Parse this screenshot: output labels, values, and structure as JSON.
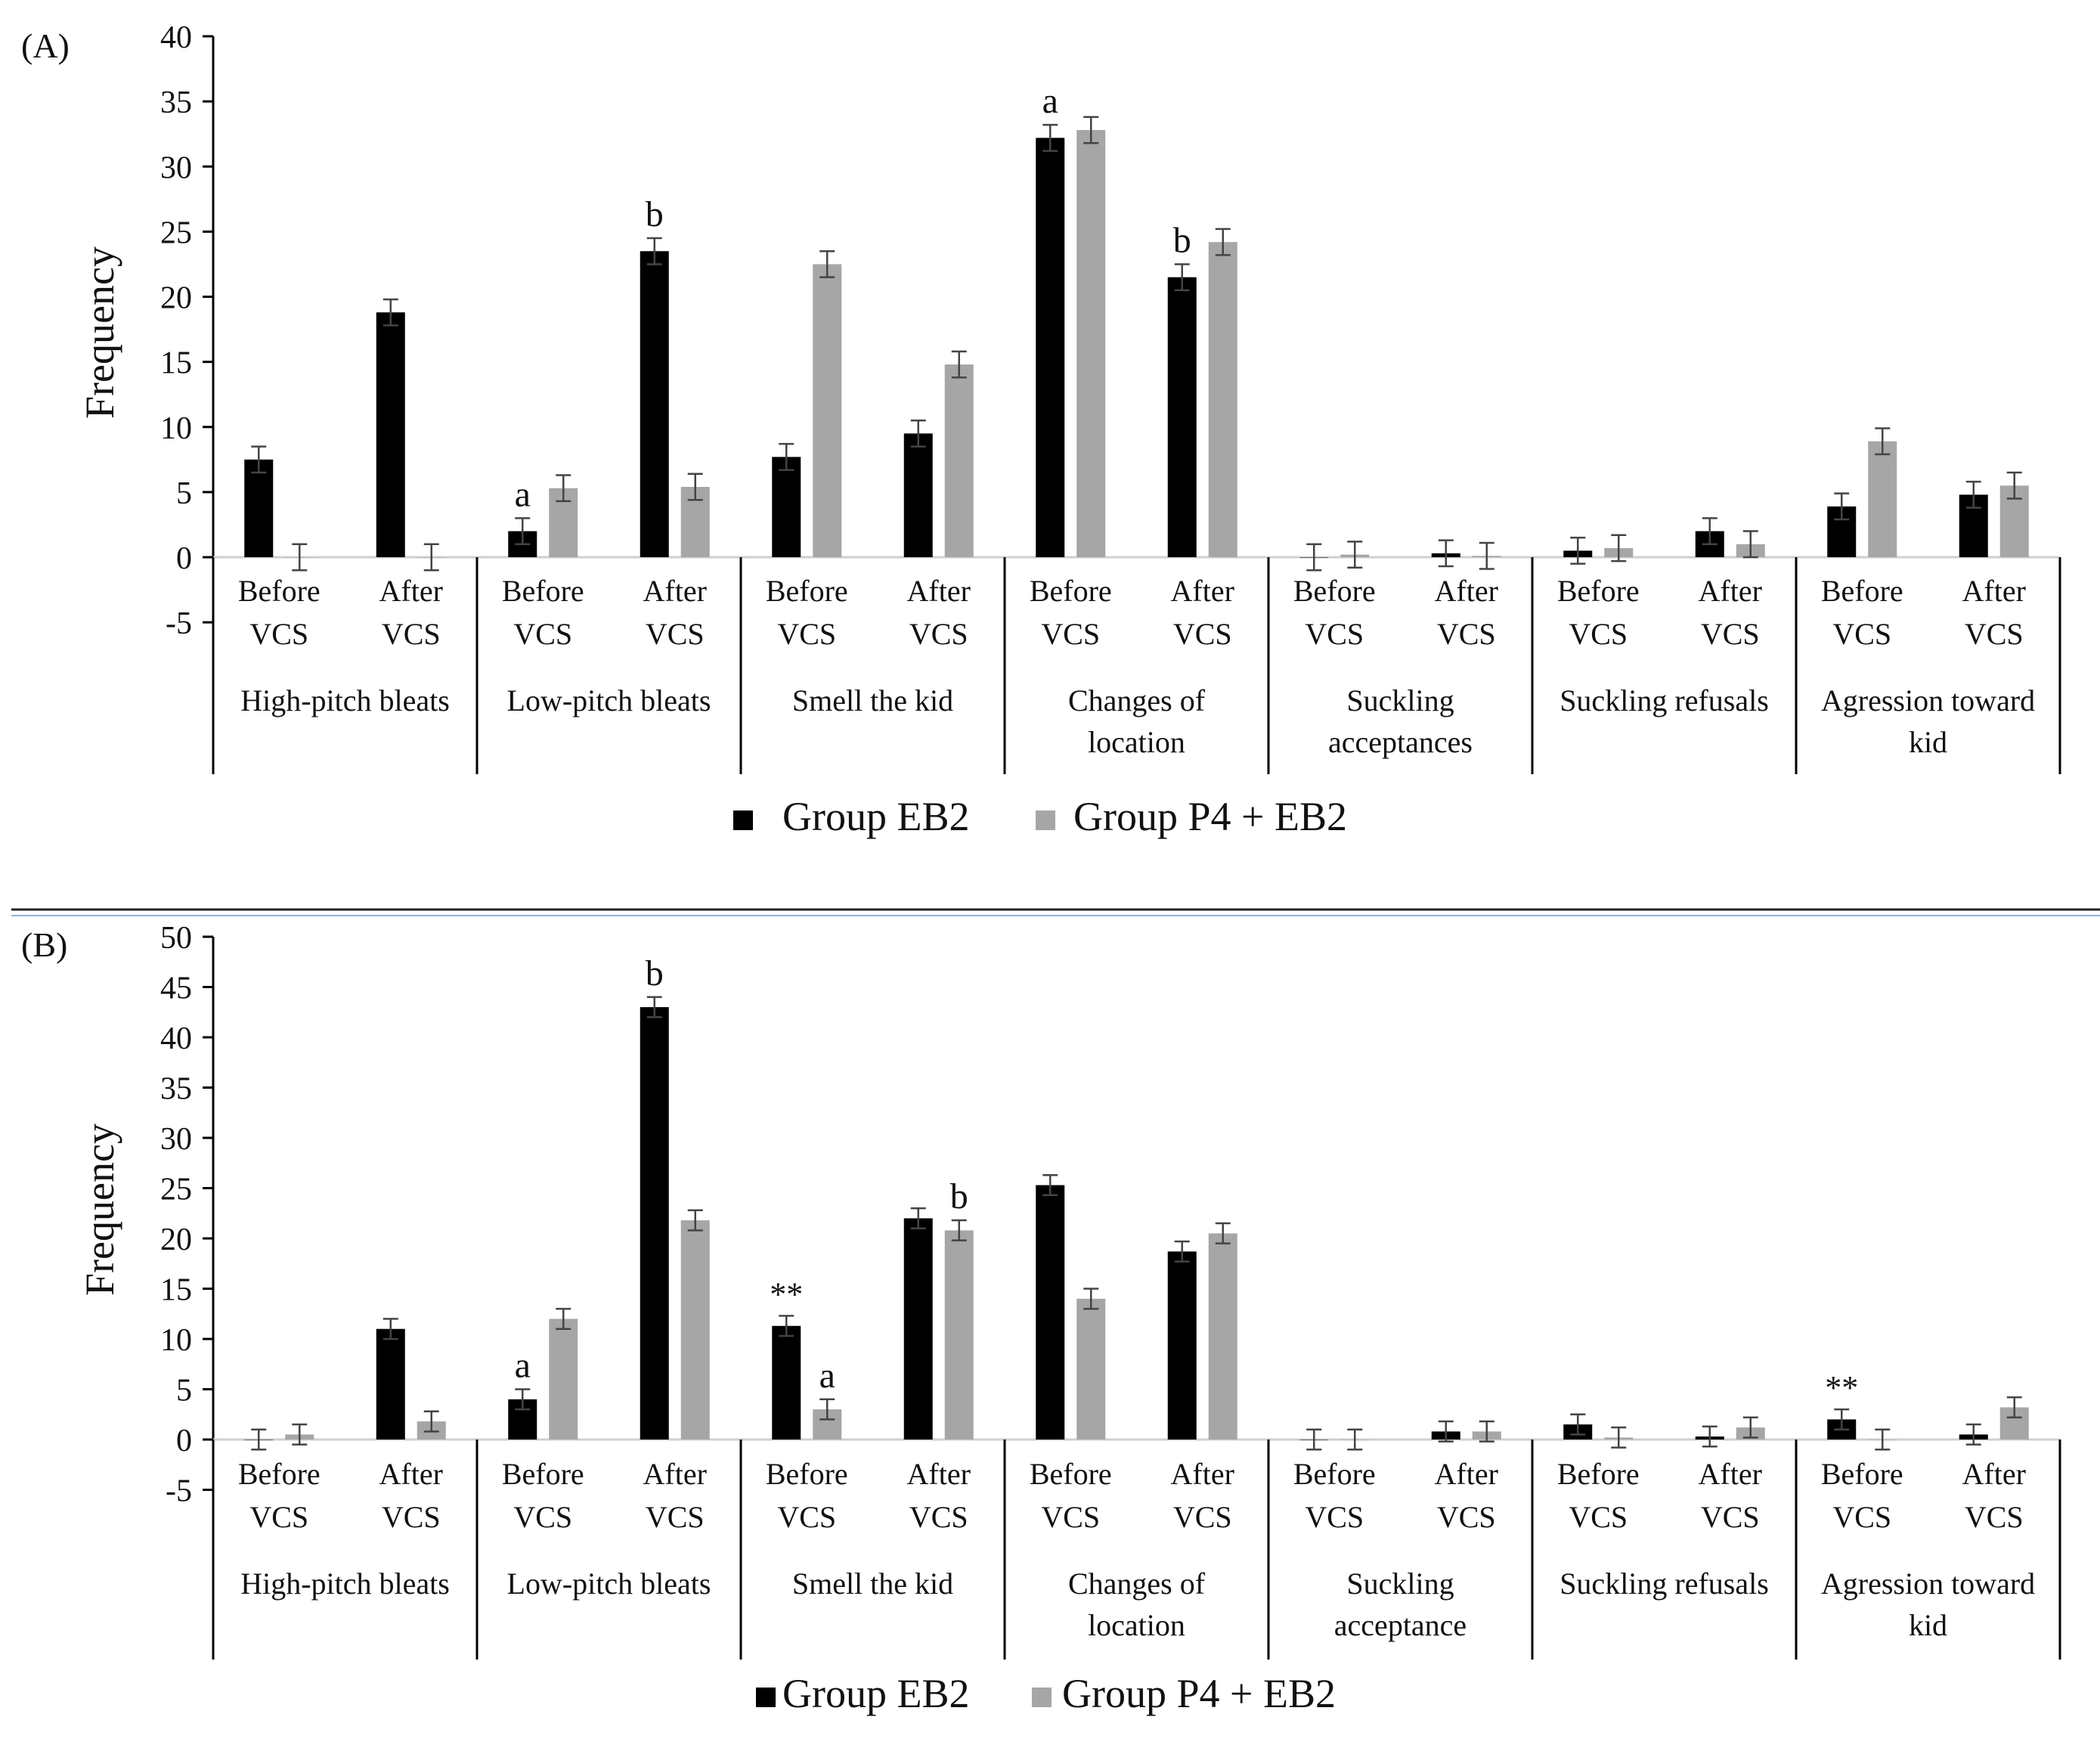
{
  "chart_data": [
    {
      "type": "bar",
      "panel_label": "(A)",
      "ylabel": "Frequency",
      "ylim": [
        -5,
        40
      ],
      "yticks": [
        -5,
        0,
        5,
        10,
        15,
        20,
        25,
        30,
        35,
        40
      ],
      "subcategories": [
        [
          "Before",
          "VCS"
        ],
        [
          "After",
          "VCS"
        ]
      ],
      "groups": [
        [
          "High-pitch bleats"
        ],
        [
          "Low-pitch bleats"
        ],
        [
          "Smell the kid"
        ],
        [
          "Changes of",
          "location"
        ],
        [
          "Suckling",
          "acceptances"
        ],
        [
          "Suckling refusals"
        ],
        [
          "Agression toward",
          "kid"
        ]
      ],
      "series": [
        {
          "name": "Group EB2",
          "color": "#000000",
          "values": [
            7.5,
            18.8,
            2.0,
            23.5,
            7.7,
            9.5,
            32.2,
            21.5,
            0.0,
            0.3,
            0.5,
            2.0,
            3.9,
            4.8
          ],
          "errors": [
            1.0,
            1.0,
            1.0,
            1.0,
            1.0,
            1.0,
            1.0,
            1.0,
            1.0,
            1.0,
            1.0,
            1.0,
            1.0,
            1.0
          ]
        },
        {
          "name": "Group P4 + EB2",
          "color": "#a6a6a6",
          "values": [
            0.0,
            0.0,
            5.3,
            5.4,
            22.5,
            14.8,
            32.8,
            24.2,
            0.2,
            0.1,
            0.7,
            1.0,
            8.9,
            5.5
          ],
          "errors": [
            1.0,
            1.0,
            1.0,
            1.0,
            1.0,
            1.0,
            1.0,
            1.0,
            1.0,
            1.0,
            1.0,
            1.0,
            1.0,
            1.0
          ]
        }
      ],
      "annotations": [
        {
          "text": "a",
          "series": 0,
          "index": 2
        },
        {
          "text": "b",
          "series": 0,
          "index": 3
        },
        {
          "text": "a",
          "series": 0,
          "index": 6
        },
        {
          "text": "b",
          "series": 0,
          "index": 7
        }
      ]
    },
    {
      "type": "bar",
      "panel_label": "(B)",
      "ylabel": "Frequency",
      "ylim": [
        -5,
        50
      ],
      "yticks": [
        -5,
        0,
        5,
        10,
        15,
        20,
        25,
        30,
        35,
        40,
        45,
        50
      ],
      "subcategories": [
        [
          "Before",
          "VCS"
        ],
        [
          "After",
          "VCS"
        ]
      ],
      "groups": [
        [
          "High-pitch bleats"
        ],
        [
          "Low-pitch bleats"
        ],
        [
          "Smell the kid"
        ],
        [
          "Changes of",
          "location"
        ],
        [
          "Suckling",
          "acceptance"
        ],
        [
          "Suckling refusals"
        ],
        [
          "Agression toward",
          "kid"
        ]
      ],
      "series": [
        {
          "name": "Group EB2",
          "color": "#000000",
          "values": [
            0.0,
            11.0,
            4.0,
            43.0,
            11.3,
            22.0,
            25.3,
            18.7,
            0.0,
            0.8,
            1.5,
            0.3,
            2.0,
            0.5
          ],
          "errors": [
            1.0,
            1.0,
            1.0,
            1.0,
            1.0,
            1.0,
            1.0,
            1.0,
            1.0,
            1.0,
            1.0,
            1.0,
            1.0,
            1.0
          ]
        },
        {
          "name": "Group P4 + EB2",
          "color": "#a6a6a6",
          "values": [
            0.5,
            1.8,
            12.0,
            21.8,
            3.0,
            20.8,
            14.0,
            20.5,
            0.0,
            0.8,
            0.2,
            1.2,
            0.0,
            3.2
          ],
          "errors": [
            1.0,
            1.0,
            1.0,
            1.0,
            1.0,
            1.0,
            1.0,
            1.0,
            1.0,
            1.0,
            1.0,
            1.0,
            1.0,
            1.0
          ]
        }
      ],
      "annotations": [
        {
          "text": "a",
          "series": 0,
          "index": 2
        },
        {
          "text": "b",
          "series": 0,
          "index": 3
        },
        {
          "text": "**",
          "series": 0,
          "index": 4
        },
        {
          "text": "a",
          "series": 1,
          "index": 4
        },
        {
          "text": "b",
          "series": 1,
          "index": 5
        },
        {
          "text": "**",
          "series": 0,
          "index": 12
        }
      ]
    }
  ]
}
